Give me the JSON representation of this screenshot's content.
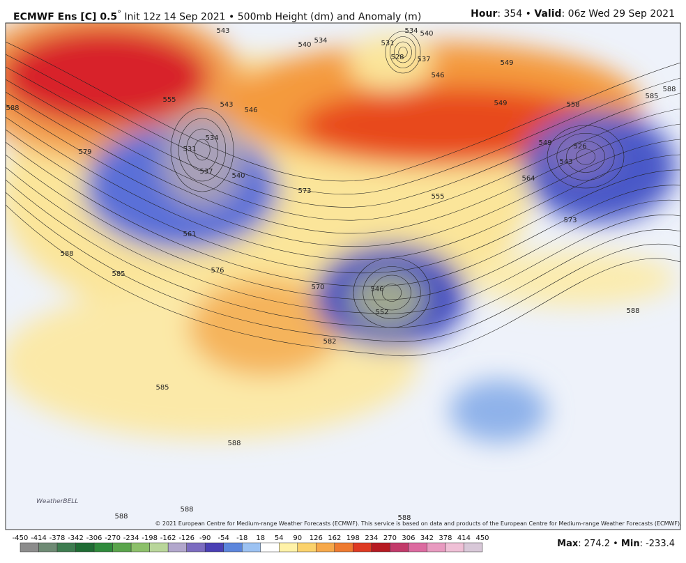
{
  "header": {
    "title_bold": "ECMWF Ens [C] 0.5",
    "title_degree": "°",
    "title_rest": " Init 12z 14 Sep 2021 • 500mb Height (dm) and Anomaly (m)",
    "hour_label": "Hour",
    "hour_value": ": 354 • ",
    "valid_label": "Valid",
    "valid_value": ": 06z Wed 29 Sep 2021"
  },
  "map": {
    "contour_labels": [
      543,
      540,
      534,
      531,
      528,
      537,
      534,
      540,
      549,
      585,
      588,
      558,
      546,
      549,
      543,
      546,
      555,
      534,
      531,
      537,
      540,
      549,
      526,
      543,
      564,
      573,
      555,
      573,
      561,
      588,
      579,
      588,
      585,
      576,
      570,
      546,
      552,
      582,
      588,
      585,
      588,
      588,
      588,
      588
    ],
    "copyright": "© 2021 European Centre for Medium-range Weather Forecasts (ECMWF). This service is based on data and products of the European Centre for Medium-range Weather Forecasts (ECMWF).",
    "logo": "WeatherBELL"
  },
  "colorbar": {
    "ticks": [
      -450,
      -414,
      -378,
      -342,
      -306,
      -270,
      -234,
      -198,
      -162,
      -126,
      -90,
      -54,
      -18,
      18,
      54,
      90,
      126,
      162,
      198,
      234,
      270,
      306,
      342,
      378,
      414,
      450
    ]
  },
  "footer": {
    "max_label": "Max",
    "max_value": ": 274.2 • ",
    "min_label": "Min",
    "min_value": ": -233.4"
  }
}
